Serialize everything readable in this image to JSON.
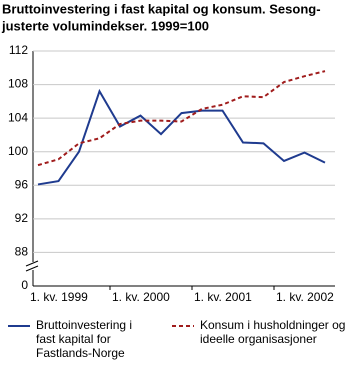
{
  "chart_data": {
    "type": "line",
    "title": [
      "Bruttoinvestering i fast kapital og konsum. Sesong-",
      "justerte volumindekser. 1999=100"
    ],
    "categories": [
      "1. kv. 1999",
      null,
      null,
      null,
      "1. kv. 2000",
      null,
      null,
      null,
      "1. kv. 2001",
      null,
      null,
      null,
      "1. kv. 2002",
      null,
      null
    ],
    "series": [
      {
        "name": [
          "Bruttoinvestering i",
          "fast kapital for",
          "Fastlands-Norge"
        ],
        "color": "#1f3b8f",
        "dash": false,
        "values": [
          96.1,
          96.5,
          100,
          107.2,
          103,
          104.3,
          102.1,
          104.6,
          104.9,
          104.9,
          101.1,
          101,
          98.9,
          99.9,
          98.7
        ]
      },
      {
        "name": [
          "Konsum i husholdninger og",
          "ideelle organisasjoner"
        ],
        "color": "#a01c1c",
        "dash": true,
        "values": [
          98.4,
          99.1,
          101,
          101.6,
          103.3,
          103.7,
          103.7,
          103.6,
          105.1,
          105.6,
          106.6,
          106.5,
          108.3,
          109,
          109.6
        ]
      }
    ],
    "ylim": [
      0,
      112
    ],
    "axis_break": [
      0,
      88
    ],
    "yticks": [
      0,
      88,
      92,
      96,
      100,
      104,
      108,
      112
    ],
    "grid": true
  }
}
